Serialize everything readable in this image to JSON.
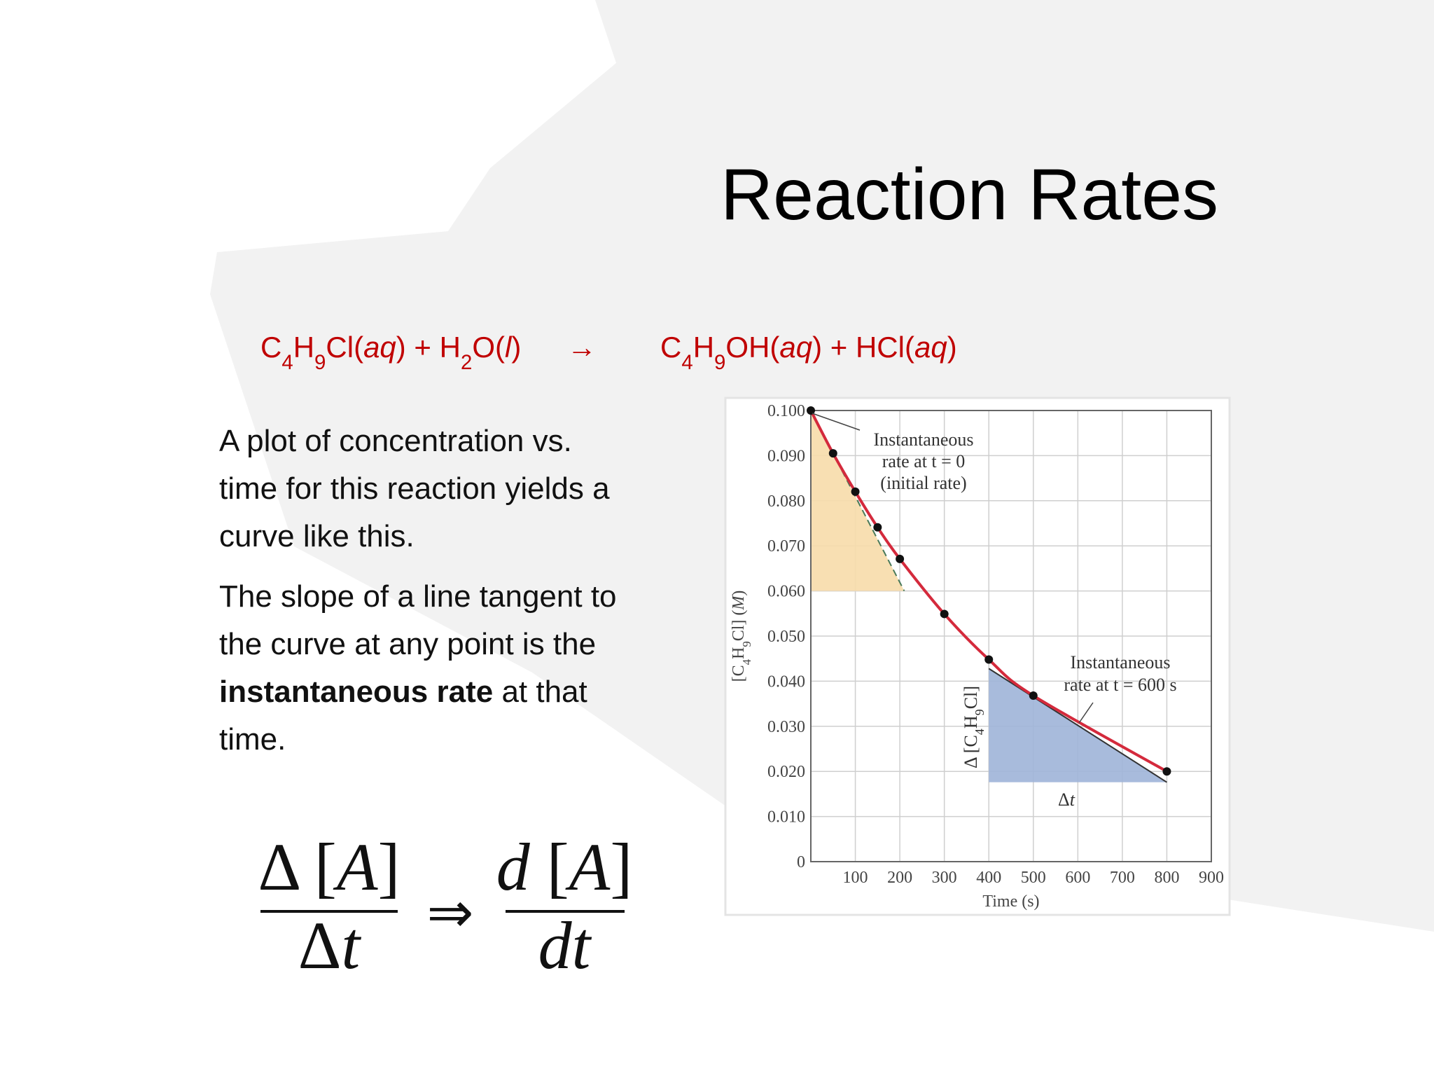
{
  "title": "Reaction Rates",
  "equation": {
    "reactants": [
      {
        "t": "C"
      },
      {
        "t": "4",
        "s": "sub"
      },
      {
        "t": "H"
      },
      {
        "t": "9",
        "s": "sub"
      },
      {
        "t": "Cl("
      },
      {
        "t": "aq",
        "s": "i"
      },
      {
        "t": ") + H"
      },
      {
        "t": "2",
        "s": "sub"
      },
      {
        "t": "O("
      },
      {
        "t": "l",
        "s": "i"
      },
      {
        "t": ")"
      }
    ],
    "arrow": "→",
    "products": [
      {
        "t": "C"
      },
      {
        "t": "4",
        "s": "sub"
      },
      {
        "t": "H"
      },
      {
        "t": "9",
        "s": "sub"
      },
      {
        "t": "OH("
      },
      {
        "t": "aq",
        "s": "i"
      },
      {
        "t": ") + HCl("
      },
      {
        "t": "aq",
        "s": "i"
      },
      {
        "t": ")"
      }
    ],
    "color": "#c00000"
  },
  "paragraphs": [
    [
      [
        {
          "t": "A plot of concentration vs."
        }
      ],
      [
        {
          "t": "time for this reaction yields a"
        }
      ],
      [
        {
          "t": "curve like this."
        }
      ]
    ],
    [
      [
        {
          "t": "The slope of a line tangent to"
        }
      ],
      [
        {
          "t": "the curve at any point is the"
        }
      ],
      [
        {
          "t": "instantaneous rate",
          "s": "b"
        },
        {
          "t": " at that"
        }
      ],
      [
        {
          "t": "time."
        }
      ]
    ]
  ],
  "formula": {
    "left_numerator": [
      {
        "t": "Δ ["
      },
      {
        "t": "A",
        "s": "i"
      },
      {
        "t": "]"
      }
    ],
    "left_denominator": [
      {
        "t": "Δ"
      },
      {
        "t": "t",
        "s": "i"
      }
    ],
    "implies": "⇒",
    "right_numerator": [
      {
        "t": "d",
        "s": "i"
      },
      {
        "t": " ["
      },
      {
        "t": "A",
        "s": "i"
      },
      {
        "t": "]"
      }
    ],
    "right_denominator": [
      {
        "t": "dt",
        "s": "i"
      }
    ]
  },
  "chart_data": {
    "type": "line",
    "x_label": "Time (s)",
    "y_label": [
      {
        "t": "[C"
      },
      {
        "t": "4",
        "s": "sub"
      },
      {
        "t": "H"
      },
      {
        "t": "9",
        "s": "sub"
      },
      {
        "t": "Cl] ("
      },
      {
        "t": "M",
        "s": "i"
      },
      {
        "t": ")"
      }
    ],
    "x": [
      0,
      50,
      100,
      150,
      200,
      300,
      400,
      500,
      800
    ],
    "series": [
      {
        "name": "[C4H9Cl]",
        "color": "#d42a3c",
        "values": [
          0.1,
          0.0905,
          0.082,
          0.0741,
          0.0671,
          0.0549,
          0.0448,
          0.0368,
          0.02
        ]
      }
    ],
    "xlim": [
      0,
      900
    ],
    "ylim": [
      0,
      0.1
    ],
    "xticks": [
      100,
      200,
      300,
      400,
      500,
      600,
      700,
      800,
      900
    ],
    "yticks": [
      0,
      {
        "value": 0.01,
        "label": "0.010"
      },
      {
        "value": 0.02,
        "label": "0.020"
      },
      {
        "value": 0.03,
        "label": "0.030"
      },
      {
        "value": 0.04,
        "label": "0.040"
      },
      {
        "value": 0.05,
        "label": "0.050"
      },
      {
        "value": 0.06,
        "label": "0.060"
      },
      {
        "value": 0.07,
        "label": "0.070"
      },
      {
        "value": 0.08,
        "label": "0.080"
      },
      {
        "value": 0.09,
        "label": "0.090"
      },
      {
        "value": 0.1,
        "label": "0.100"
      }
    ],
    "grid": true,
    "tangents": [
      {
        "x": [
          0,
          210
        ],
        "y": [
          0.1,
          0.06
        ],
        "color": "#f7dcaa",
        "line": "dashed",
        "label": [
          "Instantaneous",
          "rate at t = 0",
          "(initial rate)"
        ]
      },
      {
        "x": [
          400,
          800
        ],
        "y": [
          0.0428,
          0.0176
        ],
        "color": "#9fb4d8",
        "line": "solid",
        "label": [
          "Instantaneous",
          "rate at t = 600 s"
        ]
      }
    ],
    "delta_y_label": [
      {
        "t": "Δ [C"
      },
      {
        "t": "4",
        "s": "sub"
      },
      {
        "t": "H"
      },
      {
        "t": "9",
        "s": "sub"
      },
      {
        "t": "Cl]"
      }
    ],
    "delta_x_label": [
      {
        "t": "Δ"
      },
      {
        "t": "t",
        "s": "i"
      }
    ]
  }
}
